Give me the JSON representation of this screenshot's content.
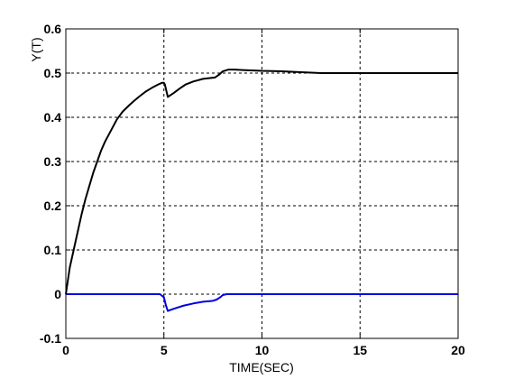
{
  "chart_data": {
    "type": "line",
    "title": "",
    "xlabel": "TIME(SEC)",
    "ylabel": "Y(T)",
    "xlim": [
      0,
      20
    ],
    "ylim": [
      -0.1,
      0.6
    ],
    "xticks": [
      "0",
      "5",
      "10",
      "15",
      "20"
    ],
    "yticks": [
      "-0.1",
      "0",
      "0.1",
      "0.2",
      "0.3",
      "0.4",
      "0.5",
      "0.6"
    ],
    "grid": true,
    "series": [
      {
        "color": "#000000",
        "x": [
          0,
          0.2,
          0.4,
          0.6,
          0.8,
          1.0,
          1.2,
          1.4,
          1.6,
          1.8,
          2.0,
          2.3,
          2.6,
          2.9,
          3.2,
          3.5,
          3.8,
          4.1,
          4.4,
          4.7,
          4.9,
          5.0,
          5.05,
          5.2,
          5.5,
          5.8,
          6.1,
          6.5,
          7.0,
          7.4,
          7.6,
          7.8,
          8.0,
          8.3,
          8.6,
          9.0,
          10.0,
          11.0,
          12.0,
          12.5,
          13.0,
          15.0,
          17.5,
          20.0
        ],
        "values": [
          0,
          0.06,
          0.1,
          0.14,
          0.18,
          0.215,
          0.245,
          0.275,
          0.3,
          0.325,
          0.345,
          0.37,
          0.395,
          0.413,
          0.426,
          0.438,
          0.449,
          0.459,
          0.467,
          0.474,
          0.478,
          0.478,
          0.474,
          0.446,
          0.455,
          0.465,
          0.474,
          0.481,
          0.487,
          0.489,
          0.49,
          0.496,
          0.504,
          0.508,
          0.508,
          0.507,
          0.505,
          0.504,
          0.502,
          0.501,
          0.5,
          0.5,
          0.5,
          0.5
        ]
      },
      {
        "color": "#0000dd",
        "x": [
          0,
          4.8,
          5.0,
          5.1,
          5.2,
          5.5,
          6.0,
          6.5,
          7.0,
          7.5,
          7.7,
          7.9,
          8.0,
          8.2,
          20.0
        ],
        "values": [
          0,
          0,
          -0.007,
          -0.025,
          -0.038,
          -0.033,
          -0.026,
          -0.021,
          -0.017,
          -0.015,
          -0.012,
          -0.006,
          -0.002,
          0,
          0
        ]
      }
    ]
  }
}
